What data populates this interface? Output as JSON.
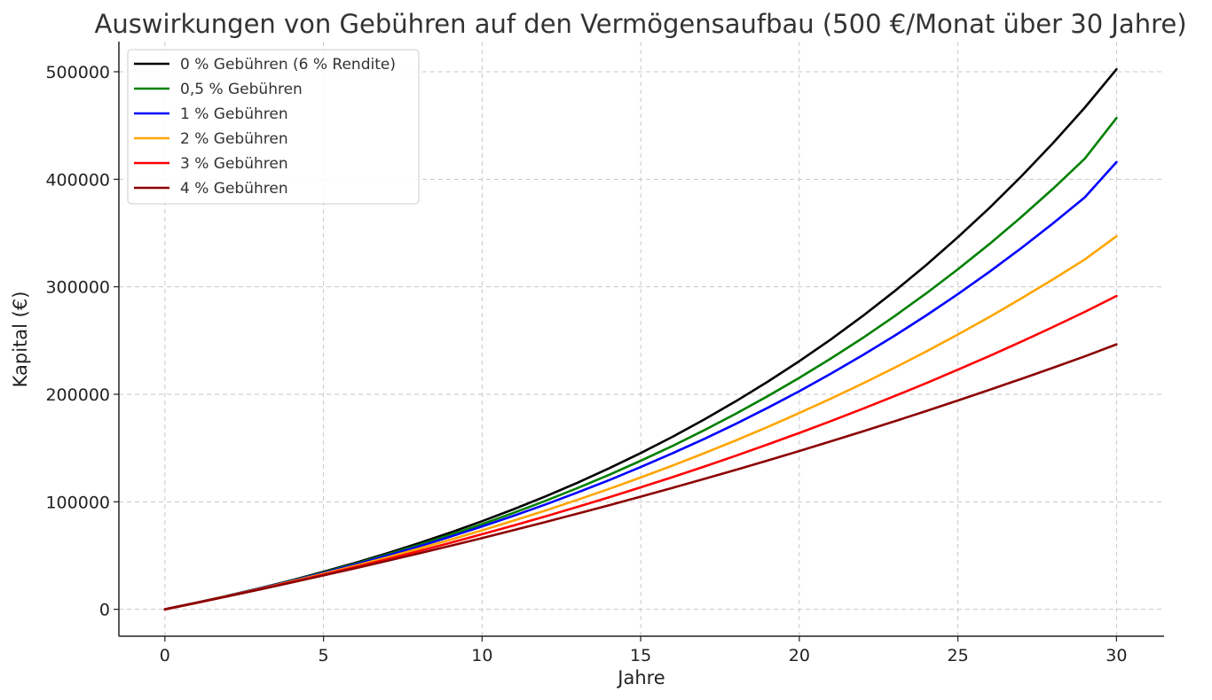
{
  "chart_data": {
    "type": "line",
    "title": "Auswirkungen von Gebühren auf den Vermögensaufbau (500 €/Monat über 30 Jahre)",
    "xlabel": "Jahre",
    "ylabel": "Kapital (€)",
    "xlim": [
      -1.45,
      31.5
    ],
    "ylim": [
      -25000,
      528000
    ],
    "xticks": [
      0,
      5,
      10,
      15,
      20,
      25,
      30
    ],
    "yticks": [
      0,
      100000,
      200000,
      300000,
      400000,
      500000
    ],
    "grid": true,
    "legend_position": "top-left",
    "x": [
      0,
      1,
      2,
      3,
      4,
      5,
      6,
      7,
      8,
      9,
      10,
      11,
      12,
      13,
      14,
      15,
      16,
      17,
      18,
      19,
      20,
      21,
      22,
      23,
      24,
      25,
      26,
      27,
      28,
      29,
      30
    ],
    "series": [
      {
        "name": "0 % Gebühren (6 % Rendite)",
        "color": "#000000",
        "values": [
          0,
          6168,
          12714,
          19664,
          27043,
          34885,
          43208,
          52044,
          61424,
          71384,
          81940,
          93160,
          105060,
          117700,
          131110,
          145350,
          160460,
          176500,
          193540,
          211620,
          230820,
          251200,
          272840,
          295810,
          320200,
          346100,
          373580,
          402760,
          433740,
          466620,
          502300
        ]
      },
      {
        "name": "0,5 % Gebühren",
        "color": "#008000",
        "values": [
          0,
          6152,
          12641,
          19484,
          26709,
          34330,
          42378,
          50872,
          59838,
          69300,
          79289,
          89828,
          100955,
          112695,
          125087,
          138168,
          151970,
          166540,
          181920,
          198150,
          215280,
          233360,
          252440,
          272580,
          293830,
          316270,
          339950,
          364930,
          391310,
          419140,
          457000
        ]
      },
      {
        "name": "1 % Gebühren",
        "color": "#0000ff",
        "values": [
          0,
          6135,
          12585,
          19343,
          26439,
          33883,
          41697,
          49905,
          58526,
          67579,
          77090,
          87076,
          97566,
          108585,
          120158,
          132313,
          145080,
          158490,
          172577,
          187373,
          202915,
          219240,
          236390,
          254400,
          273320,
          293190,
          314060,
          335990,
          359010,
          383200,
          416000
        ]
      },
      {
        "name": "2 % Gebühren",
        "color": "#ffa500",
        "values": [
          0,
          6109,
          12463,
          19075,
          25954,
          33109,
          40554,
          48297,
          56354,
          64735,
          73455,
          82528,
          91965,
          101785,
          111999,
          122629,
          133685,
          145189,
          157157,
          169606,
          182563,
          196043,
          210063,
          224647,
          239823,
          255614,
          272039,
          289133,
          306916,
          325419,
          347000
        ]
      },
      {
        "name": "3 % Gebühren",
        "color": "#ff0000",
        "values": [
          0,
          6082,
          12348,
          18805,
          25456,
          32311,
          39374,
          46652,
          54151,
          61876,
          69840,
          78043,
          86496,
          95207,
          104182,
          113430,
          122959,
          132777,
          142893,
          153317,
          164057,
          175124,
          186526,
          198277,
          210386,
          222862,
          235716,
          248962,
          262611,
          276676,
          291500
        ]
      },
      {
        "name": "4 % Gebühren",
        "color": "#8b0000",
        "values": [
          0,
          6056,
          12233,
          18535,
          24962,
          31519,
          38207,
          45030,
          51990,
          59091,
          66334,
          73723,
          81261,
          88950,
          96794,
          104796,
          112958,
          121284,
          129777,
          138442,
          147280,
          156295,
          165492,
          174873,
          184443,
          194205,
          204163,
          214321,
          224683,
          235253,
          246500
        ]
      }
    ]
  }
}
